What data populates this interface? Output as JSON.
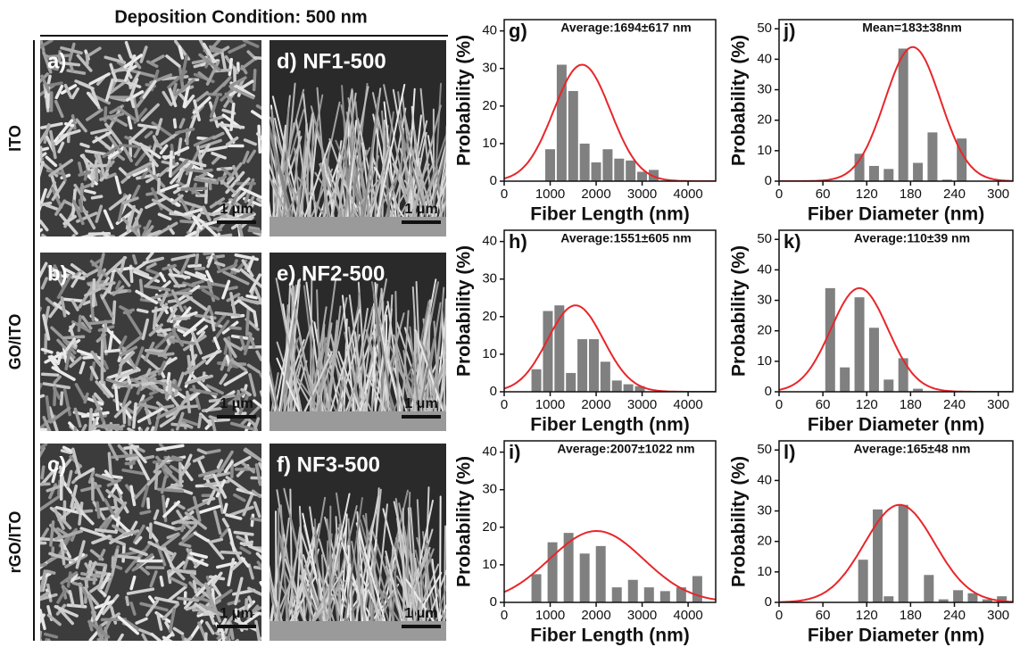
{
  "figure": {
    "title": "Deposition Condition: 500 nm",
    "rows": [
      "ITO",
      "GO/ITO",
      "rGO/ITO"
    ],
    "panels": [
      "a)",
      "b)",
      "c)",
      "d) NF1-500",
      "e) NF2-500",
      "f) NF3-500"
    ],
    "scale_bar": "1 μm"
  },
  "chart_data": [
    {
      "type": "bar",
      "label": "g)",
      "annotation": "Average:1694±617 nm",
      "xlabel": "Fiber Length (nm)",
      "ylabel": "Probability (%)",
      "x": [
        1000,
        1250,
        1500,
        1750,
        2000,
        2250,
        2500,
        2750,
        3000,
        3250
      ],
      "values": [
        8.5,
        31,
        24,
        10,
        5,
        8.5,
        6,
        5.5,
        2.5,
        3
      ],
      "color": "#808080",
      "fit": {
        "mean": 1694,
        "sd": 617,
        "peak": 31,
        "color": "#e8262a"
      },
      "xlim": [
        0,
        4600
      ],
      "xticks": [
        0,
        1000,
        2000,
        3000,
        4000
      ],
      "ylim": [
        0,
        43
      ],
      "yticks": [
        0,
        10,
        20,
        30,
        40
      ]
    },
    {
      "type": "bar",
      "label": "h)",
      "annotation": "Average:1551±605 nm",
      "xlabel": "Fiber Length (nm)",
      "ylabel": "Probability (%)",
      "x": [
        700,
        950,
        1200,
        1450,
        1700,
        1950,
        2200,
        2450,
        2700,
        2950
      ],
      "values": [
        6,
        21.5,
        23,
        5,
        14,
        14,
        8,
        3,
        2,
        1.5
      ],
      "color": "#808080",
      "fit": {
        "mean": 1551,
        "sd": 605,
        "peak": 23,
        "color": "#e8262a"
      },
      "xlim": [
        0,
        4600
      ],
      "xticks": [
        0,
        1000,
        2000,
        3000,
        4000
      ],
      "ylim": [
        0,
        43
      ],
      "yticks": [
        0,
        10,
        20,
        30,
        40
      ]
    },
    {
      "type": "bar",
      "label": "i)",
      "annotation": "Average:2007±1022 nm",
      "xlabel": "Fiber Length (nm)",
      "ylabel": "Probability (%)",
      "x": [
        700,
        1050,
        1400,
        1750,
        2100,
        2450,
        2800,
        3150,
        3500,
        3850,
        4200
      ],
      "values": [
        7.5,
        16,
        18.5,
        13,
        15,
        4,
        6,
        4,
        3,
        4,
        7
      ],
      "color": "#808080",
      "fit": {
        "mean": 2007,
        "sd": 1022,
        "peak": 19,
        "color": "#e8262a"
      },
      "xlim": [
        0,
        4600
      ],
      "xticks": [
        0,
        1000,
        2000,
        3000,
        4000
      ],
      "ylim": [
        0,
        43
      ],
      "yticks": [
        0,
        10,
        20,
        30,
        40
      ]
    },
    {
      "type": "bar",
      "label": "j)",
      "annotation": "Mean=183±38nm",
      "xlabel": "Fiber Diameter (nm)",
      "ylabel": "Probability (%)",
      "x": [
        110,
        130,
        150,
        170,
        190,
        210,
        230,
        250
      ],
      "values": [
        9,
        5,
        4,
        43.5,
        6,
        16,
        0.5,
        14
      ],
      "color": "#808080",
      "fit": {
        "mean": 183,
        "sd": 38,
        "peak": 44,
        "color": "#e8262a"
      },
      "xlim": [
        0,
        320
      ],
      "xticks": [
        0,
        60,
        120,
        180,
        240,
        300
      ],
      "ylim": [
        0,
        53
      ],
      "yticks": [
        0,
        10,
        20,
        30,
        40,
        50
      ]
    },
    {
      "type": "bar",
      "label": "k)",
      "annotation": "Average:110±39 nm",
      "xlabel": "Fiber Diameter (nm)",
      "ylabel": "Probability (%)",
      "x": [
        70,
        90,
        110,
        130,
        150,
        170,
        190
      ],
      "values": [
        34,
        8,
        31,
        21,
        4,
        11,
        1
      ],
      "color": "#808080",
      "fit": {
        "mean": 110,
        "sd": 39,
        "peak": 34,
        "color": "#e8262a"
      },
      "xlim": [
        0,
        320
      ],
      "xticks": [
        0,
        60,
        120,
        180,
        240,
        300
      ],
      "ylim": [
        0,
        53
      ],
      "yticks": [
        0,
        10,
        20,
        30,
        40,
        50
      ]
    },
    {
      "type": "bar",
      "label": "l)",
      "annotation": "Average:165±48 nm",
      "xlabel": "Fiber Diameter (nm)",
      "ylabel": "Probability (%)",
      "x": [
        115,
        135,
        150,
        170,
        205,
        225,
        245,
        265,
        285,
        305
      ],
      "values": [
        14,
        30.5,
        2,
        32,
        9,
        1,
        4,
        3,
        1,
        2
      ],
      "color": "#808080",
      "fit": {
        "mean": 165,
        "sd": 48,
        "peak": 32,
        "color": "#e8262a"
      },
      "xlim": [
        0,
        320
      ],
      "xticks": [
        0,
        60,
        120,
        180,
        240,
        300
      ],
      "ylim": [
        0,
        53
      ],
      "yticks": [
        0,
        10,
        20,
        30,
        40,
        50
      ]
    }
  ]
}
